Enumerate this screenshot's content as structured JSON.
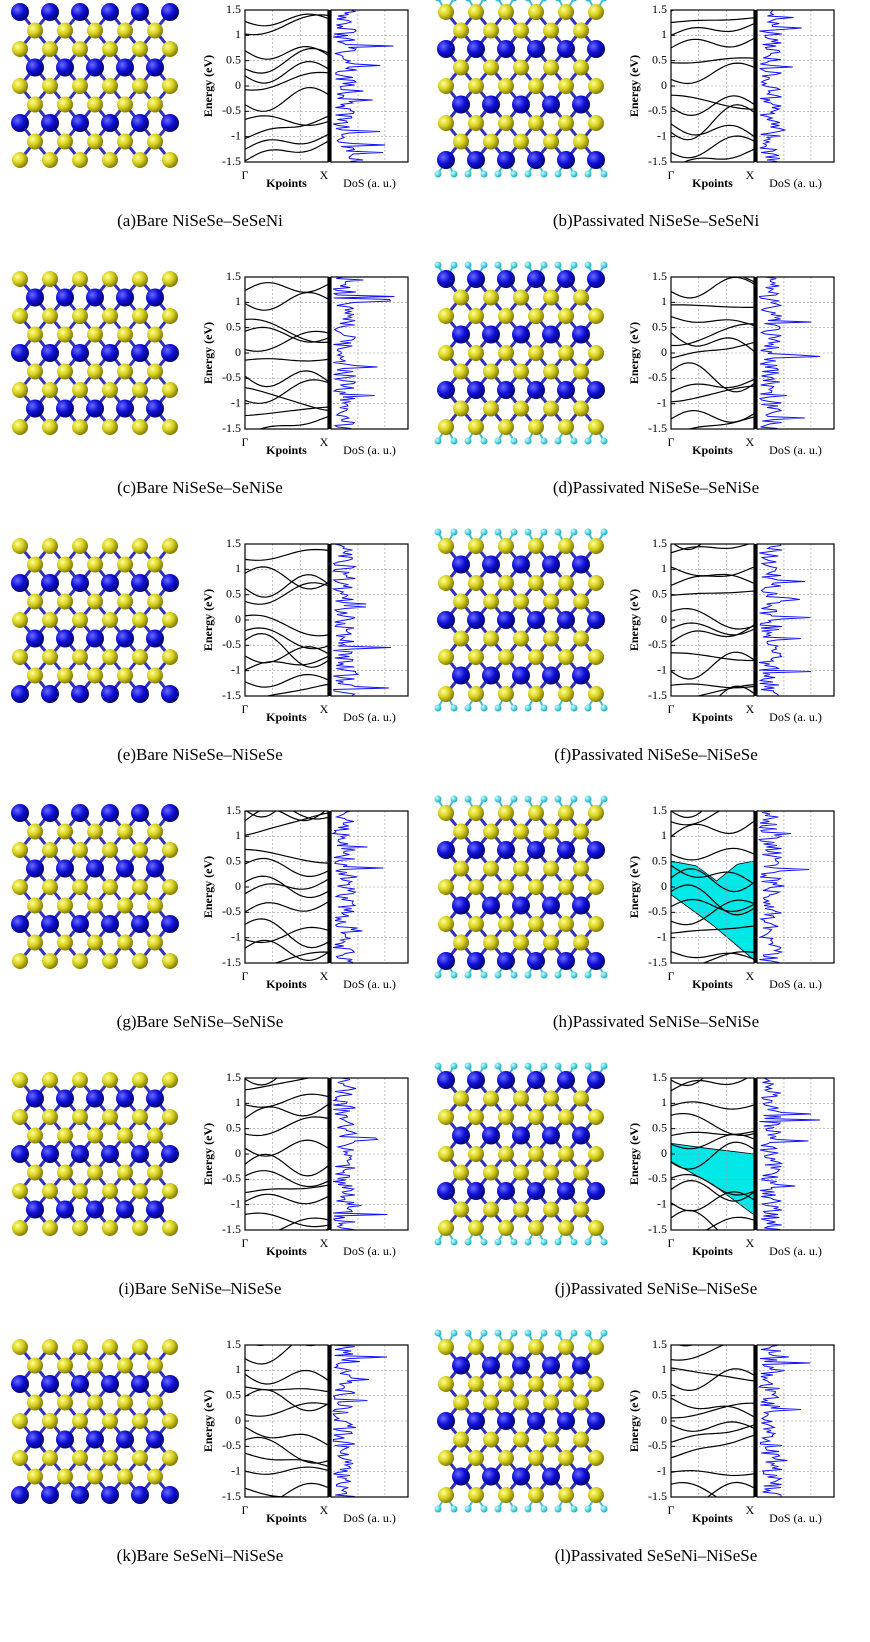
{
  "axes": {
    "ylabel": "Energy (eV)",
    "xlabel": "Kpoints",
    "dos_label": "DoS (a. u.)",
    "xticks": [
      "Γ",
      "X"
    ],
    "ylim": [
      -1.5,
      1.5
    ],
    "yticks": [
      1.5,
      1,
      0.5,
      0,
      -0.5,
      -1,
      -1.5
    ]
  },
  "panels": [
    {
      "caption": "(a)Bare NiSeSe–SeSeNi",
      "passivated": false,
      "gap_shaded": false
    },
    {
      "caption": "(b)Passivated NiSeSe–SeSeNi",
      "passivated": true,
      "gap_shaded": false
    },
    {
      "caption": "(c)Bare NiSeSe–SeNiSe",
      "passivated": false,
      "gap_shaded": false
    },
    {
      "caption": "(d)Passivated NiSeSe–SeNiSe",
      "passivated": true,
      "gap_shaded": false
    },
    {
      "caption": "(e)Bare NiSeSe–NiSeSe",
      "passivated": false,
      "gap_shaded": false
    },
    {
      "caption": "(f)Passivated NiSeSe–NiSeSe",
      "passivated": true,
      "gap_shaded": false
    },
    {
      "caption": "(g)Bare SeNiSe–SeNiSe",
      "passivated": false,
      "gap_shaded": false
    },
    {
      "caption": "(h)Passivated SeNiSe–SeNiSe",
      "passivated": true,
      "gap_shaded": true
    },
    {
      "caption": "(i)Bare SeNiSe–NiSeSe",
      "passivated": false,
      "gap_shaded": false
    },
    {
      "caption": "(j)Passivated SeNiSe–NiSeSe",
      "passivated": true,
      "gap_shaded": true
    },
    {
      "caption": "(k)Bare SeSeNi–NiSeSe",
      "passivated": false,
      "gap_shaded": false
    },
    {
      "caption": "(l)Passivated SeSeNi–NiSeSe",
      "passivated": true,
      "gap_shaded": false
    }
  ]
}
